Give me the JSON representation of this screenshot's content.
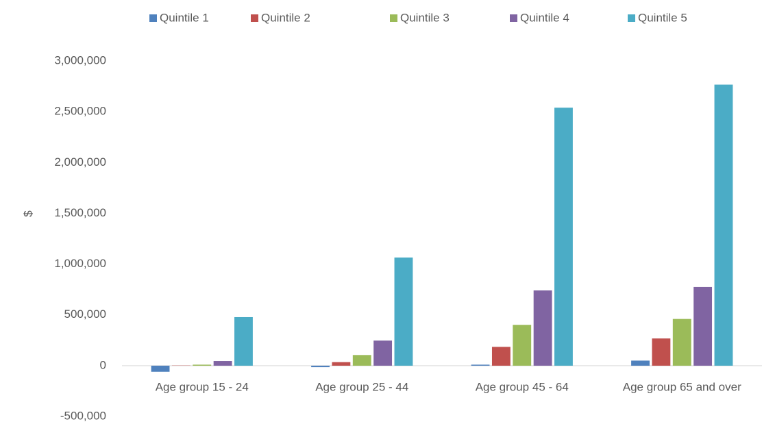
{
  "chart_data": {
    "type": "bar",
    "y_label": "$",
    "categories": [
      "Age group 15 - 24",
      "Age group 25 - 44",
      "Age group 45 - 64",
      "Age group 65 and over"
    ],
    "series": [
      {
        "name": "Quintile 1",
        "color": "#4f81bd",
        "values": [
          -60000,
          -15000,
          10000,
          50000
        ]
      },
      {
        "name": "Quintile 2",
        "color": "#c0504d",
        "values": [
          2000,
          35000,
          185000,
          268000
        ]
      },
      {
        "name": "Quintile 3",
        "color": "#9bbb59",
        "values": [
          10000,
          105000,
          402000,
          460000
        ]
      },
      {
        "name": "Quintile 4",
        "color": "#8064a2",
        "values": [
          46000,
          247000,
          741000,
          775000
        ]
      },
      {
        "name": "Quintile 5",
        "color": "#4bacc6",
        "values": [
          478000,
          1065000,
          2540000,
          2767000
        ]
      }
    ],
    "ylim": [
      -500000,
      3000000
    ],
    "yticks": [
      {
        "value": -500000,
        "label": "-500,000"
      },
      0,
      {
        "value": 500000,
        "label": "500,000"
      },
      {
        "value": 1000000,
        "label": "1,000,000"
      },
      {
        "value": 1500000,
        "label": "1,500,000"
      },
      {
        "value": 2000000,
        "label": "2,000,000"
      },
      {
        "value": 2500000,
        "label": "2,500,000"
      },
      {
        "value": 3000000,
        "label": "3,000,000"
      }
    ],
    "grid": false,
    "legend": "top"
  }
}
